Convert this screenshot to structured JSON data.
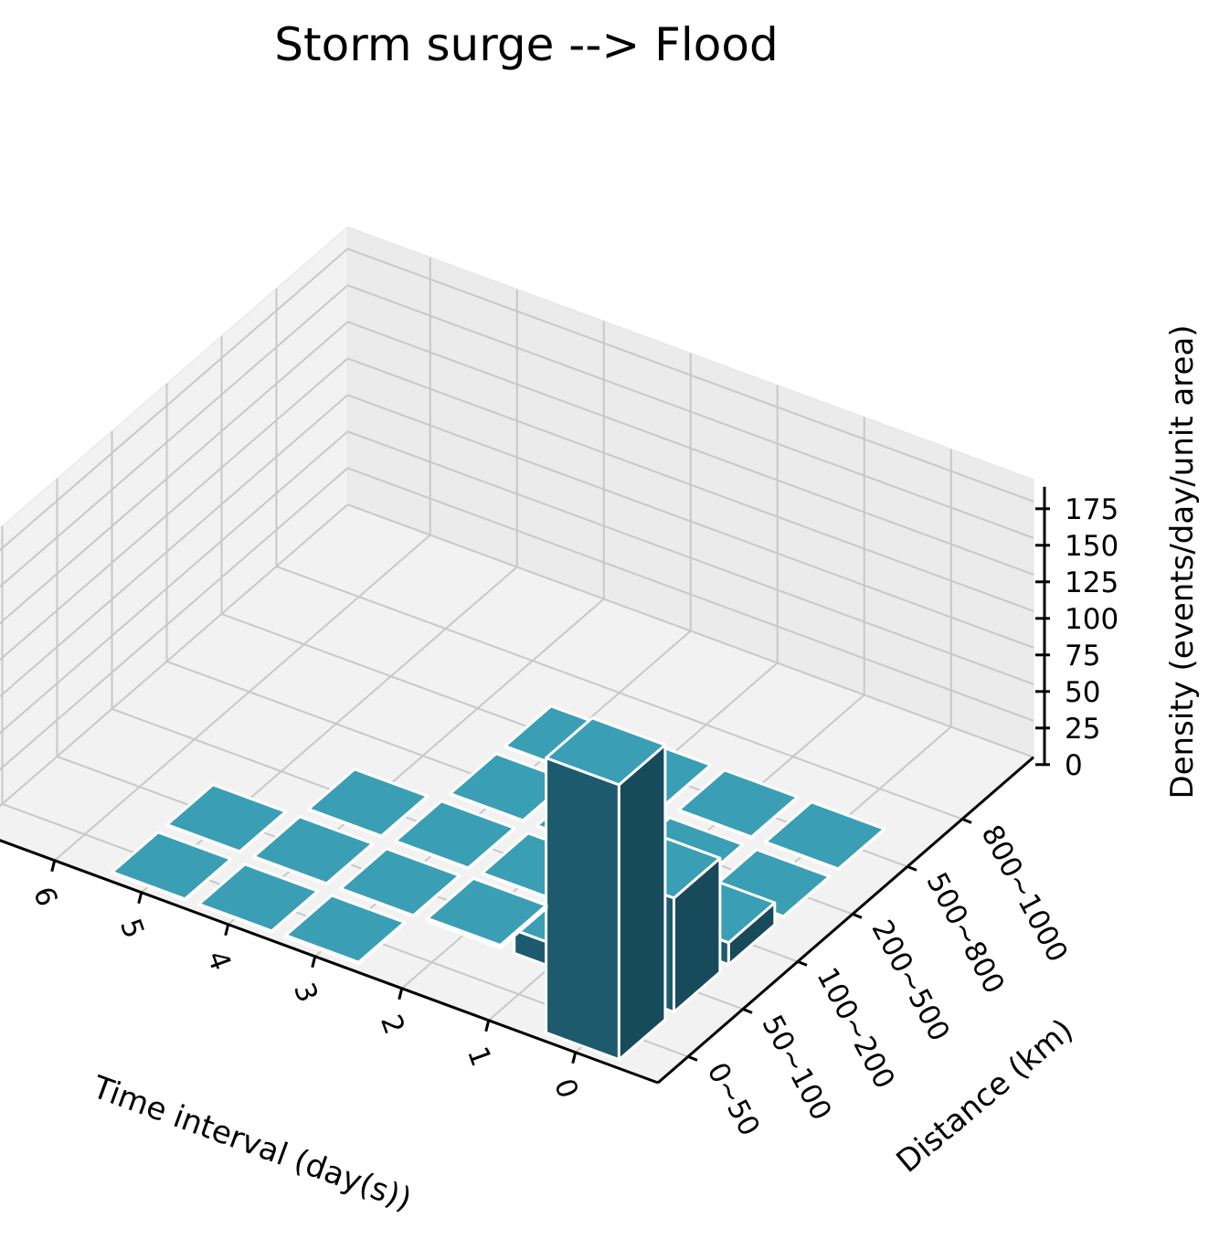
{
  "chart_data": {
    "type": "bar3d",
    "title": "Storm surge --> Flood",
    "xlabel": "Time interval (day(s))",
    "ylabel": "Distance (km)",
    "zlabel": "Density (events/day/unit area)",
    "x_ticks": [
      "0",
      "1",
      "2",
      "3",
      "4",
      "5",
      "6"
    ],
    "y_ticks": [
      "0~50",
      "50~100",
      "100~200",
      "200~500",
      "500~800",
      "800~1000"
    ],
    "z_ticks": [
      "0",
      "25",
      "50",
      "75",
      "100",
      "125",
      "150",
      "175"
    ],
    "zlim": [
      0,
      190
    ],
    "grid": true,
    "colors": {
      "bar_top": "#3a9eb5",
      "bar_side_light": "#1e5a6e",
      "bar_side_dark": "#174a5b",
      "pane": "#f2f2f2"
    },
    "bars": [
      {
        "x": 0,
        "y": "0~50",
        "value": 188
      },
      {
        "x": 0,
        "y": "50~100",
        "value": 78
      },
      {
        "x": 0,
        "y": "100~200",
        "value": 15
      },
      {
        "x": 1,
        "y": "50~100",
        "value": 16
      },
      {
        "x": 0,
        "y": "200~500",
        "value": 0.5
      },
      {
        "x": 1,
        "y": "100~200",
        "value": 2
      },
      {
        "x": 2,
        "y": "50~100",
        "value": 2
      },
      {
        "x": 3,
        "y": "0~50",
        "value": 1
      },
      {
        "x": 4,
        "y": "0~50",
        "value": 0.5
      },
      {
        "x": 5,
        "y": "0~50",
        "value": 0.5
      },
      {
        "x": 0,
        "y": "500~800",
        "value": 0.5
      },
      {
        "x": 1,
        "y": "200~500",
        "value": 0.5
      },
      {
        "x": 2,
        "y": "100~200",
        "value": 0.5
      },
      {
        "x": 3,
        "y": "50~100",
        "value": 0.5
      },
      {
        "x": 4,
        "y": "50~100",
        "value": 0.5
      },
      {
        "x": 1,
        "y": "500~800",
        "value": 0.5
      },
      {
        "x": 2,
        "y": "200~500",
        "value": 0.5
      },
      {
        "x": 3,
        "y": "100~200",
        "value": 0.5
      },
      {
        "x": 4,
        "y": "100~200",
        "value": 0.5
      },
      {
        "x": 5,
        "y": "50~100",
        "value": 0.5
      },
      {
        "x": 2,
        "y": "500~800",
        "value": 0.5
      },
      {
        "x": 3,
        "y": "200~500",
        "value": 0.5
      },
      {
        "x": 3,
        "y": "500~800",
        "value": 0.5
      }
    ]
  }
}
